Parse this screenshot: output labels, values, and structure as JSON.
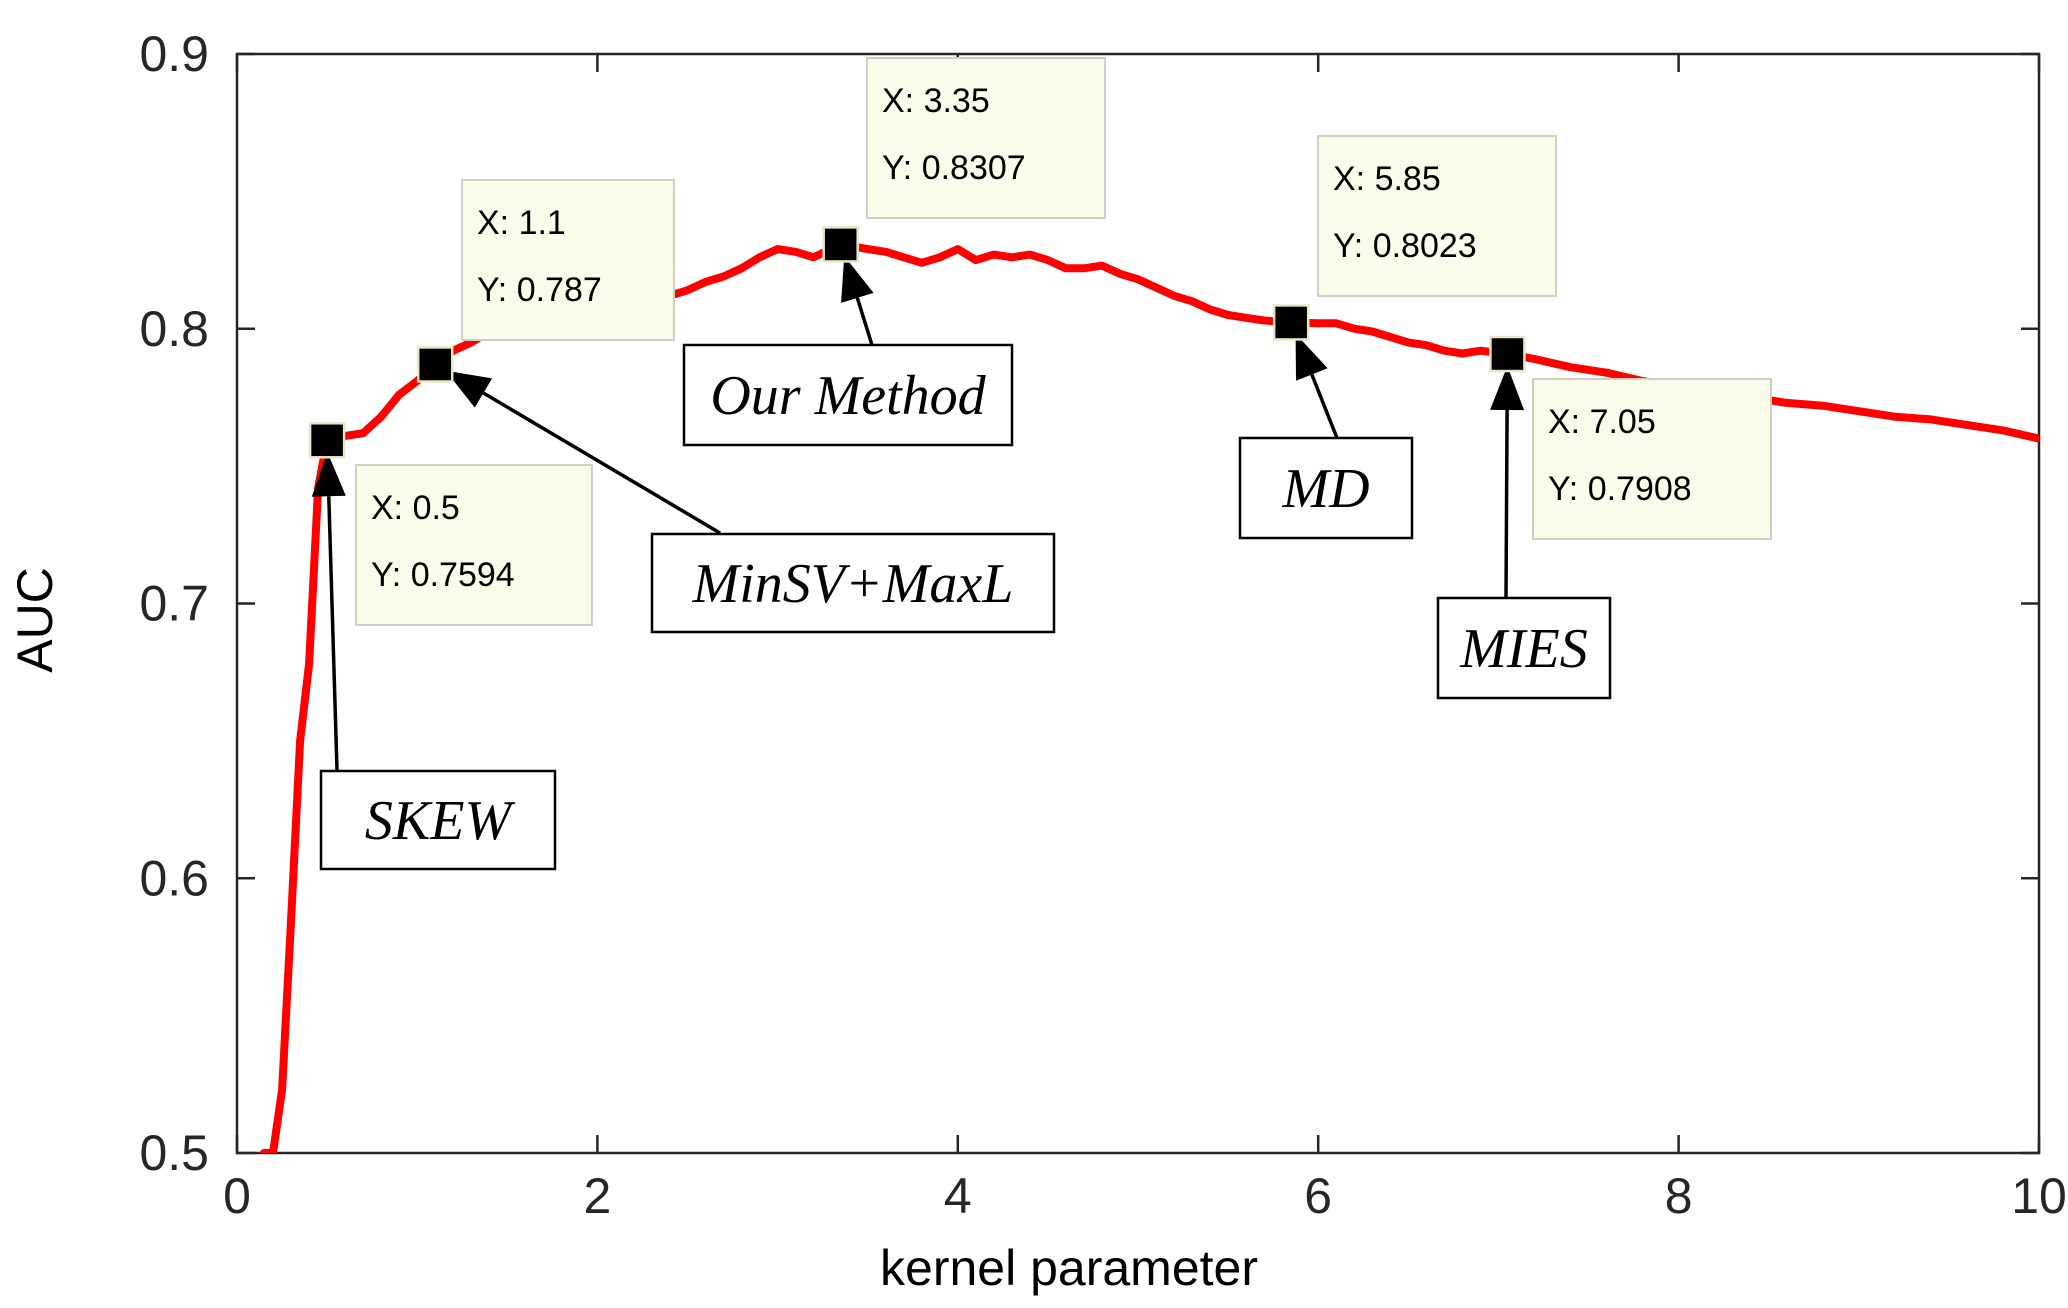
{
  "chart_data": {
    "type": "line",
    "title": "",
    "xlabel": "kernel parameter",
    "ylabel": "AUC",
    "xlim": [
      0,
      10
    ],
    "ylim": [
      0.5,
      0.9
    ],
    "xticks": [
      0,
      2,
      4,
      6,
      8,
      10
    ],
    "yticks": [
      0.5,
      0.6,
      0.7,
      0.8,
      0.9
    ],
    "xtick_labels": [
      "0",
      "2",
      "4",
      "6",
      "8",
      "10"
    ],
    "ytick_labels": [
      "0.5",
      "0.6",
      "0.7",
      "0.8",
      "0.9"
    ],
    "grid": false,
    "series": [
      {
        "name": "AUC",
        "color": "#ff0000",
        "x": [
          0.15,
          0.2,
          0.25,
          0.3,
          0.35,
          0.4,
          0.45,
          0.5,
          0.55,
          0.6,
          0.7,
          0.8,
          0.9,
          1.0,
          1.1,
          1.2,
          1.3,
          1.4,
          1.5,
          1.6,
          1.7,
          1.8,
          1.9,
          2.0,
          2.1,
          2.2,
          2.3,
          2.4,
          2.5,
          2.6,
          2.7,
          2.8,
          2.9,
          3.0,
          3.1,
          3.2,
          3.35,
          3.5,
          3.6,
          3.7,
          3.8,
          3.9,
          4.0,
          4.1,
          4.2,
          4.3,
          4.4,
          4.5,
          4.6,
          4.7,
          4.8,
          4.9,
          5.0,
          5.1,
          5.2,
          5.3,
          5.4,
          5.5,
          5.6,
          5.7,
          5.85,
          6.0,
          6.1,
          6.2,
          6.3,
          6.4,
          6.5,
          6.6,
          6.7,
          6.8,
          6.9,
          7.05,
          7.2,
          7.4,
          7.6,
          7.8,
          8.0,
          8.2,
          8.4,
          8.6,
          8.8,
          9.0,
          9.2,
          9.4,
          9.6,
          9.8,
          10.0
        ],
        "y": [
          0.5,
          0.5,
          0.523,
          0.585,
          0.65,
          0.678,
          0.742,
          0.7594,
          0.762,
          0.761,
          0.762,
          0.768,
          0.776,
          0.781,
          0.787,
          0.792,
          0.795,
          0.799,
          0.801,
          0.804,
          0.806,
          0.807,
          0.808,
          0.81,
          0.811,
          0.811,
          0.81,
          0.812,
          0.814,
          0.817,
          0.819,
          0.822,
          0.826,
          0.829,
          0.828,
          0.826,
          0.8307,
          0.829,
          0.828,
          0.826,
          0.824,
          0.826,
          0.829,
          0.825,
          0.827,
          0.826,
          0.827,
          0.825,
          0.822,
          0.822,
          0.823,
          0.82,
          0.818,
          0.815,
          0.812,
          0.81,
          0.807,
          0.805,
          0.804,
          0.803,
          0.8023,
          0.802,
          0.802,
          0.8,
          0.799,
          0.797,
          0.795,
          0.794,
          0.792,
          0.791,
          0.792,
          0.7908,
          0.789,
          0.786,
          0.784,
          0.781,
          0.779,
          0.777,
          0.775,
          0.773,
          0.772,
          0.77,
          0.768,
          0.767,
          0.765,
          0.763,
          0.76
        ]
      }
    ],
    "datatips": [
      {
        "x": 0.5,
        "y": 0.7594,
        "x_text": "X: 0.5",
        "y_text": "Y: 0.7594"
      },
      {
        "x": 1.1,
        "y": 0.787,
        "x_text": "X: 1.1",
        "y_text": "Y: 0.787"
      },
      {
        "x": 3.35,
        "y": 0.8307,
        "x_text": "X: 3.35",
        "y_text": "Y: 0.8307"
      },
      {
        "x": 5.85,
        "y": 0.8023,
        "x_text": "X: 5.85",
        "y_text": "Y: 0.8023"
      },
      {
        "x": 7.05,
        "y": 0.7908,
        "x_text": "X: 7.05",
        "y_text": "Y: 0.7908"
      }
    ],
    "annotations": [
      {
        "label": "SKEW",
        "target_x": 0.5,
        "target_y": 0.7594
      },
      {
        "label": "MinSV+MaxL",
        "target_x": 1.1,
        "target_y": 0.787
      },
      {
        "label": "Our Method",
        "target_x": 3.35,
        "target_y": 0.8307
      },
      {
        "label": "MD",
        "target_x": 5.85,
        "target_y": 0.8023
      },
      {
        "label": "MIES",
        "target_x": 7.05,
        "target_y": 0.7908
      }
    ]
  }
}
